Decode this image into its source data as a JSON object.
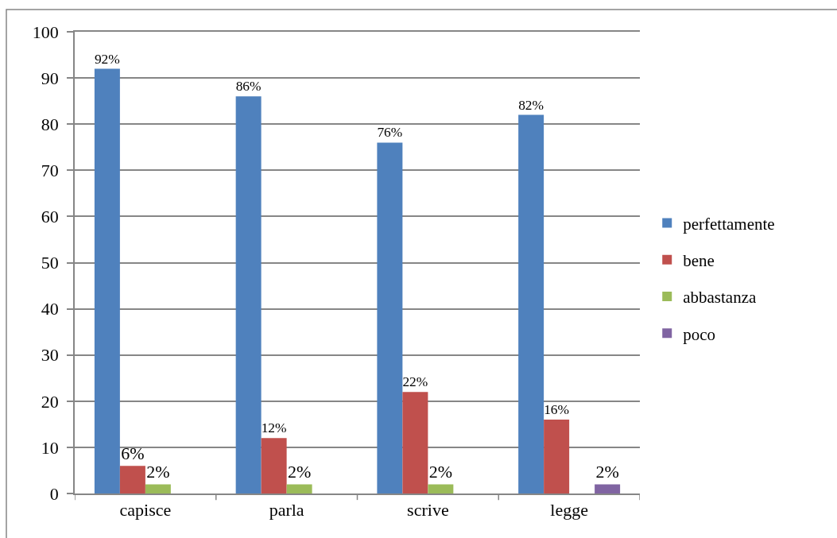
{
  "chart_data": {
    "type": "bar",
    "categories": [
      "capisce",
      "parla",
      "scrive",
      "legge"
    ],
    "series": [
      {
        "name": "perfettamente",
        "color": "#4f81bd",
        "values": [
          92,
          86,
          76,
          82
        ],
        "value_labels": [
          "92%",
          "86%",
          "76%",
          "82%"
        ]
      },
      {
        "name": "bene",
        "color": "#c0504d",
        "values": [
          6,
          12,
          22,
          16
        ],
        "value_labels": [
          "6%",
          "12%",
          "22%",
          "16%"
        ]
      },
      {
        "name": "abbastanza",
        "color": "#9bbb59",
        "values": [
          2,
          2,
          2,
          null
        ],
        "value_labels": [
          "2%",
          "2%",
          "2%",
          null
        ]
      },
      {
        "name": "poco",
        "color": "#8064a2",
        "values": [
          null,
          null,
          null,
          2
        ],
        "value_labels": [
          null,
          null,
          null,
          "2%"
        ]
      }
    ],
    "ylim": [
      0,
      100
    ],
    "yticks": [
      0,
      10,
      20,
      30,
      40,
      50,
      60,
      70,
      80,
      90,
      100
    ],
    "grid": "y",
    "legend": "right"
  }
}
